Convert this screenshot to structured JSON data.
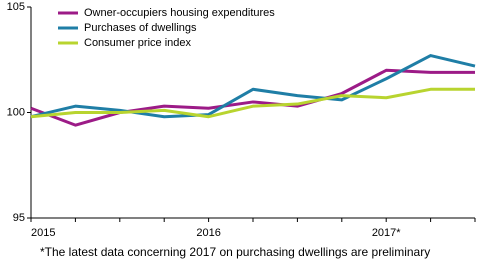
{
  "chart_data": {
    "type": "line",
    "categories": [
      "2015",
      null,
      null,
      null,
      "2016",
      null,
      null,
      null,
      "2017*",
      null,
      null
    ],
    "series": [
      {
        "name": "Owner-occupiers housing expenditures",
        "color": "#9c1b87",
        "values": [
          100.2,
          99.4,
          100.0,
          100.3,
          100.2,
          100.5,
          100.3,
          100.9,
          102.0,
          101.9,
          101.9
        ]
      },
      {
        "name": "Purchases of dwellings",
        "color": "#1f7ea6",
        "values": [
          99.8,
          100.3,
          100.1,
          99.8,
          99.9,
          101.1,
          100.8,
          100.6,
          101.6,
          102.7,
          102.2
        ]
      },
      {
        "name": "Consumer price index",
        "color": "#b8d42f",
        "values": [
          99.8,
          100.0,
          100.0,
          100.1,
          99.8,
          100.3,
          100.4,
          100.8,
          100.7,
          101.1,
          101.1
        ]
      }
    ],
    "ylim": [
      95,
      105
    ],
    "yticks": [
      95,
      100,
      105
    ],
    "legend": "top-left",
    "note": "*The latest data concerning 2017 on purchasing dwellings are preliminary"
  }
}
